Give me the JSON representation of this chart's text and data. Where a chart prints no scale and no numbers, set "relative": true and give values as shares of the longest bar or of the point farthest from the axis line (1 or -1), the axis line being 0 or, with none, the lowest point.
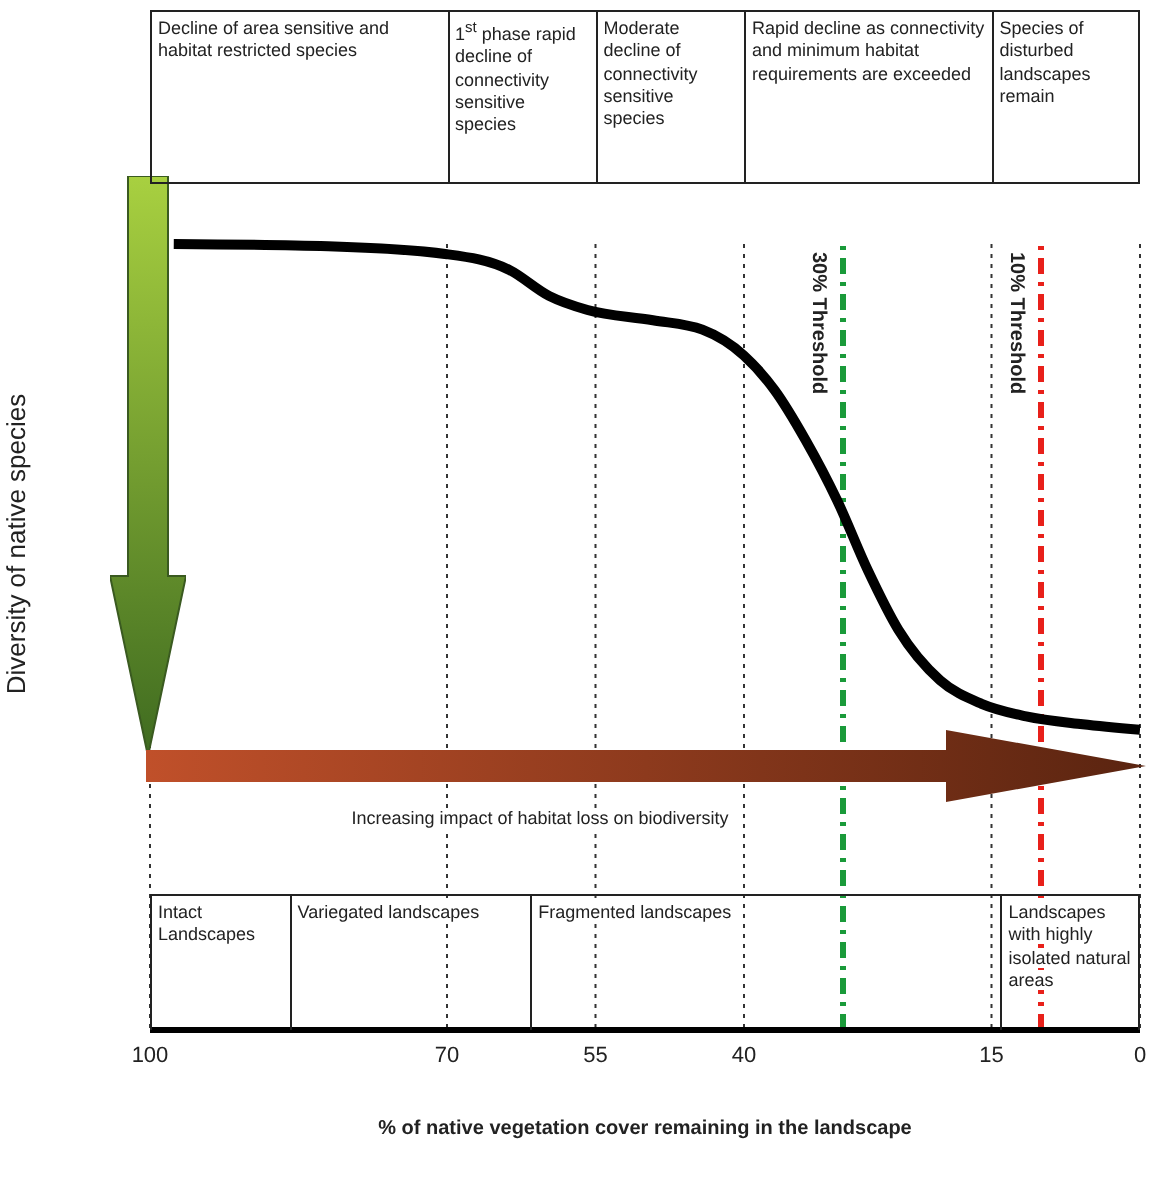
{
  "chart_data": {
    "type": "line",
    "ylabel": "Diversity of native species",
    "xlabel": "% of native vegetation cover remaining in the landscape",
    "relative": true,
    "x": [
      97.6,
      82,
      70,
      63.7,
      59.7,
      55.8,
      49.2,
      44.2,
      40,
      36.9,
      33.8,
      30.6,
      27.5,
      24.4,
      20.2,
      16,
      11.5,
      5.8,
      0
    ],
    "series": [
      {
        "color": "#000000",
        "values": [
          1,
          0.997,
          0.987,
          0.967,
          0.934,
          0.916,
          0.903,
          0.891,
          0.858,
          0.814,
          0.751,
          0.674,
          0.585,
          0.509,
          0.445,
          0.415,
          0.399,
          0.389,
          0.382
        ]
      }
    ],
    "xlim": [
      100,
      0
    ],
    "xticks": [
      100,
      70,
      55,
      40,
      15,
      0
    ],
    "grid": "x",
    "marker": "none",
    "line_style": "solid",
    "ref_lines": [
      {
        "axis": "x",
        "value": 30,
        "label": "30% Threshold",
        "color": "#1a9a3a",
        "line_style": "dashed"
      },
      {
        "axis": "x",
        "value": 10,
        "label": "10% Threshold",
        "color": "#e8201a",
        "line_style": "dashed"
      }
    ],
    "annotations": [
      "Increasing impact of habitat loss on biodiversity",
      "Decline of area sensitive and habitat restricted species",
      "1$^{st}$ phase rapid decline of connectivity sensitive species",
      "Moderate decline of connectivity sensitive species",
      "Rapid decline as connectivity and minimum habitat requirements are exceeded",
      "Species of disturbed landscapes remain",
      "Intact Landscapes",
      "Variegated landscapes",
      "Fragmented landscapes",
      "Landscapes with highly isolated natural areas"
    ]
  }
}
